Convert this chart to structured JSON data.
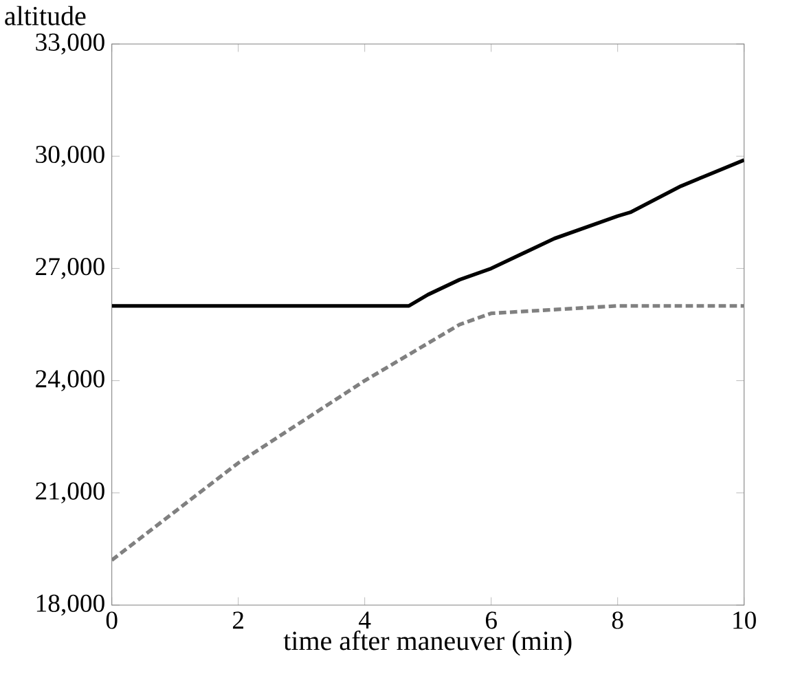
{
  "chart_data": {
    "type": "line",
    "xlabel": "time after maneuver (min)",
    "ylabel": "altitude",
    "xlim": [
      0,
      10
    ],
    "xticks": [
      0,
      2,
      4,
      6,
      8,
      10
    ],
    "ylim": [
      18000,
      33000
    ],
    "yticks": [
      {
        "value": 18000,
        "label": "18,000"
      },
      {
        "value": 21000,
        "label": "21,000"
      },
      {
        "value": 24000,
        "label": "24,000"
      },
      {
        "value": 27000,
        "label": "27,000"
      },
      {
        "value": 30000,
        "label": "30,000"
      },
      {
        "value": 33000,
        "label": "33,000"
      }
    ],
    "grid": false,
    "series": [
      {
        "color": "#000000",
        "line_style": "solid",
        "x": [
          0,
          4.7,
          5,
          5.5,
          6,
          7,
          8,
          8.2,
          9,
          10
        ],
        "values": [
          26000,
          26000,
          26300,
          26700,
          27000,
          27800,
          28400,
          28500,
          29200,
          29900
        ]
      },
      {
        "color": "#808080",
        "line_style": "dashed",
        "x": [
          0,
          1,
          2,
          3,
          4,
          5,
          5.5,
          6,
          7,
          8,
          9,
          10
        ],
        "values": [
          19200,
          20500,
          21800,
          22900,
          24000,
          25000,
          25500,
          25800,
          25900,
          26000,
          26000,
          26000
        ]
      }
    ]
  }
}
